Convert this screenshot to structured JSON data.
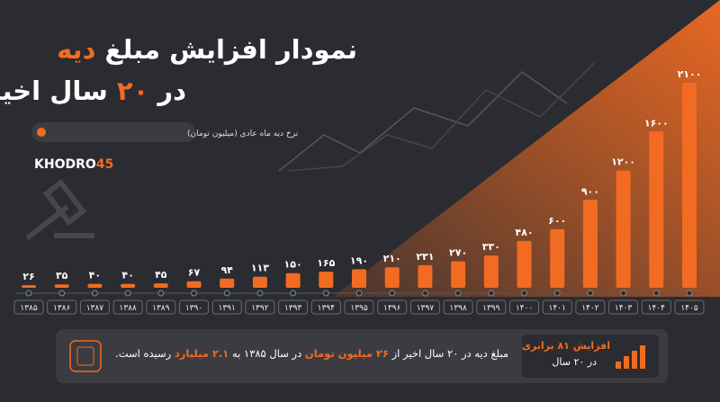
{
  "chart_data": {
    "type": "bar",
    "title": {
      "line1": "نمودار افزایش مبلغ",
      "line1_highlight": "دیه",
      "line2_start": "در",
      "line2_highlight": "۲۰",
      "line2_end": "سال اخیر"
    },
    "legend": "نرخ دیه ماه عادی (میلیون تومان)",
    "brand": "KHODRO",
    "brand_number": "45",
    "color": "#f26b22",
    "categories": [
      "۱۳۸۵",
      "۱۳۸۶",
      "۱۳۸۷",
      "۱۳۸۸",
      "۱۳۸۹",
      "۱۳۹۰",
      "۱۳۹۱",
      "۱۳۹۲",
      "۱۳۹۳",
      "۱۳۹۴",
      "۱۳۹۵",
      "۱۳۹۶",
      "۱۳۹۷",
      "۱۳۹۸",
      "۱۳۹۹",
      "۱۴۰۰",
      "۱۴۰۱",
      "۱۴۰۲",
      "۱۴۰۳",
      "۱۴۰۴",
      "۱۴۰۵"
    ],
    "values": [
      26,
      35,
      40,
      40,
      45,
      67,
      94,
      113,
      150,
      165,
      190,
      210,
      231,
      270,
      330,
      480,
      600,
      900,
      1200,
      1600,
      2100
    ],
    "value_labels": [
      "۲۶",
      "۳۵",
      "۴۰",
      "۴۰",
      "۴۵",
      "۶۷",
      "۹۴",
      "۱۱۳",
      "۱۵۰",
      "۱۶۵",
      "۱۹۰",
      "۲۱۰",
      "۲۳۱",
      "۲۷۰",
      "۳۳۰",
      "۴۸۰",
      "۶۰۰",
      "۹۰۰",
      "۱۲۰۰",
      "۱۶۰۰",
      "۲۱۰۰"
    ],
    "footer": {
      "part1": "مبلغ دیه در ۲۰ سال اخیر از",
      "highlight1": "۲۶ میلیون تومان",
      "part2": "در سال ۱۳۸۵ به",
      "highlight2": "۲.۱ میلیارد",
      "part3": "رسیده است."
    },
    "badge": {
      "line1": "افزایش ۸۱ برابری",
      "line2": "در ۲۰ سال"
    }
  }
}
